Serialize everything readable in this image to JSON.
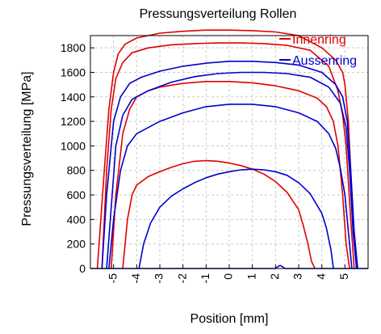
{
  "chart_data": {
    "type": "line",
    "title": "Pressungsverteilung Rollen",
    "xlabel": "Position [mm]",
    "ylabel": "Pressungsverteilung [MPa]",
    "xlim": [
      -6.0,
      6.0
    ],
    "ylim": [
      0,
      1900
    ],
    "xticks": [
      -5,
      -4,
      -3,
      -2,
      -1,
      0,
      1,
      2,
      3,
      4,
      5
    ],
    "xtick_labels": [
      "-5",
      "-4",
      "-3",
      "-2",
      "-1",
      "0",
      "1",
      "2",
      "3",
      "4",
      "5"
    ],
    "yticks": [
      0,
      200,
      400,
      600,
      800,
      1000,
      1200,
      1400,
      1600,
      1800
    ],
    "ytick_labels": [
      "0",
      "200",
      "400",
      "600",
      "800",
      "1000",
      "1200",
      "1400",
      "1600",
      "1800"
    ],
    "grid": true,
    "legend_position": "top-right",
    "legend": [
      {
        "label": "Innenring",
        "color": "#e00000"
      },
      {
        "label": "Aussenring",
        "color": "#0000cc"
      }
    ],
    "series": [
      {
        "legend": 0,
        "color": "#e00000",
        "x": [
          -5.7,
          -5.4,
          -5.2,
          -5.0,
          -4.8,
          -4.5,
          -4.0,
          -3.0,
          -2.0,
          -1.0,
          0.0,
          1.0,
          2.0,
          3.0,
          4.0,
          4.6,
          4.9,
          5.0,
          5.15,
          5.35,
          5.5
        ],
        "y": [
          0,
          800,
          1300,
          1600,
          1750,
          1830,
          1880,
          1920,
          1935,
          1945,
          1945,
          1940,
          1930,
          1900,
          1800,
          1700,
          1600,
          1500,
          1200,
          400,
          0
        ]
      },
      {
        "legend": 0,
        "color": "#e00000",
        "x": [
          -5.5,
          -5.3,
          -5.1,
          -4.9,
          -4.6,
          -4.2,
          -3.5,
          -2.5,
          -1.5,
          -0.5,
          0.5,
          1.5,
          2.5,
          3.5,
          4.3,
          4.7,
          4.9,
          5.05,
          5.25,
          5.4
        ],
        "y": [
          0,
          800,
          1300,
          1550,
          1680,
          1760,
          1800,
          1825,
          1835,
          1840,
          1840,
          1835,
          1820,
          1780,
          1650,
          1450,
          1250,
          1000,
          400,
          0
        ]
      },
      {
        "legend": 0,
        "color": "#e00000",
        "x": [
          -5.1,
          -4.9,
          -4.6,
          -4.3,
          -4.0,
          -3.5,
          -3.0,
          -2.0,
          -1.0,
          0.0,
          1.0,
          2.0,
          3.0,
          3.8,
          4.2,
          4.5,
          4.7,
          4.9,
          5.05,
          5.2
        ],
        "y": [
          0,
          600,
          1100,
          1300,
          1400,
          1450,
          1480,
          1510,
          1525,
          1525,
          1515,
          1490,
          1450,
          1390,
          1320,
          1200,
          1000,
          600,
          200,
          0
        ]
      },
      {
        "legend": 0,
        "color": "#e00000",
        "x": [
          -4.6,
          -4.4,
          -4.2,
          -4.0,
          -3.5,
          -3.0,
          -2.5,
          -2.0,
          -1.5,
          -1.0,
          -0.5,
          0.0,
          0.5,
          1.0,
          1.5,
          2.0,
          2.5,
          3.0,
          3.2,
          3.4,
          3.55,
          3.7
        ],
        "y": [
          0,
          400,
          600,
          680,
          750,
          790,
          825,
          855,
          875,
          880,
          875,
          860,
          840,
          810,
          770,
          710,
          620,
          480,
          350,
          200,
          60,
          0
        ]
      },
      {
        "legend": 1,
        "color": "#0000cc",
        "x": [
          -5.5,
          -5.3,
          -5.0,
          -4.7,
          -4.3,
          -3.8,
          -3.0,
          -2.0,
          -1.0,
          0.0,
          1.0,
          2.0,
          3.0,
          4.0,
          4.6,
          4.9,
          5.1,
          5.25,
          5.4,
          5.55
        ],
        "y": [
          0,
          600,
          1200,
          1400,
          1510,
          1560,
          1610,
          1650,
          1675,
          1690,
          1690,
          1680,
          1660,
          1600,
          1500,
          1400,
          1200,
          800,
          300,
          0
        ]
      },
      {
        "legend": 1,
        "color": "#0000cc",
        "x": [
          -5.3,
          -5.1,
          -4.9,
          -4.6,
          -4.2,
          -3.5,
          -2.5,
          -1.5,
          -0.5,
          0.5,
          1.5,
          2.5,
          3.5,
          4.3,
          4.8,
          5.05,
          5.2,
          5.35,
          5.5
        ],
        "y": [
          0,
          500,
          1000,
          1250,
          1380,
          1450,
          1520,
          1565,
          1590,
          1600,
          1600,
          1590,
          1560,
          1480,
          1350,
          1150,
          800,
          300,
          0
        ]
      },
      {
        "legend": 1,
        "color": "#0000cc",
        "x": [
          -5.2,
          -5.0,
          -4.7,
          -4.4,
          -4.0,
          -3.0,
          -2.0,
          -1.0,
          0.0,
          1.0,
          2.0,
          3.0,
          3.8,
          4.3,
          4.6,
          4.8,
          5.0,
          5.15,
          5.3
        ],
        "y": [
          0,
          400,
          800,
          1000,
          1100,
          1200,
          1270,
          1320,
          1340,
          1340,
          1320,
          1270,
          1200,
          1100,
          980,
          820,
          600,
          300,
          0
        ]
      },
      {
        "legend": 1,
        "color": "#0000cc",
        "x": [
          -3.9,
          -3.7,
          -3.4,
          -3.0,
          -2.5,
          -2.0,
          -1.5,
          -1.0,
          -0.5,
          0.0,
          0.5,
          1.0,
          1.5,
          2.0,
          2.5,
          3.0,
          3.5,
          4.0,
          4.2,
          4.4,
          4.5
        ],
        "y": [
          0,
          200,
          370,
          500,
          590,
          650,
          700,
          740,
          770,
          790,
          805,
          810,
          805,
          790,
          760,
          700,
          610,
          450,
          330,
          150,
          0
        ]
      },
      {
        "legend": 1,
        "color": "#0000cc",
        "x": [
          -6.0,
          2.0,
          2.1,
          2.2,
          2.3,
          2.4,
          6.0
        ],
        "y": [
          0,
          0,
          15,
          25,
          15,
          0,
          0
        ]
      }
    ]
  }
}
